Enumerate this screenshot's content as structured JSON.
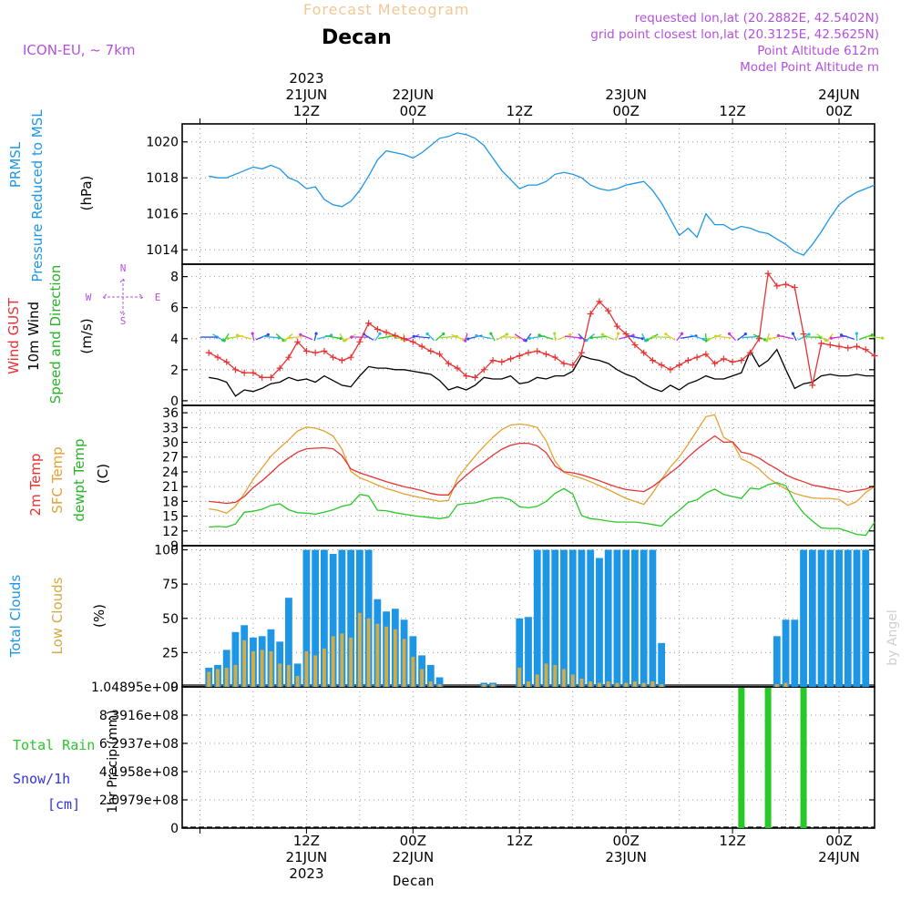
{
  "header": {
    "title_faded": "Forecast Meteogram",
    "location": "Decan",
    "model": "ICON-EU, ~ 7km",
    "requested": "requested lon,lat (20.2882E, 42.5402N)",
    "grid_point": "grid point closest lon,lat (20.3125E, 42.5625N)",
    "point_alt": "Point Altitude 612m",
    "model_alt": "Model Point Altitude m",
    "watermark": "by Angel",
    "footer_location": "Decan"
  },
  "colors": {
    "pressure": "#1e96e6",
    "gust": "#e63232",
    "wind": "#000000",
    "dir": "#28b428",
    "temp2m": "#e63232",
    "sfc": "#e6a032",
    "dew": "#28c828",
    "total_clouds": "#1e96e6",
    "low_clouds": "#d2aa46",
    "rain": "#28c828",
    "snow": "#3232e6",
    "compass": "#b450dc",
    "info": "#b450dc"
  },
  "time_axis": {
    "top_ticks": [
      {
        "hour": 24,
        "lines": [
          "2023",
          "21JUN",
          "12Z"
        ]
      },
      {
        "hour": 36,
        "lines": [
          "22JUN",
          "00Z"
        ]
      },
      {
        "hour": 48,
        "lines": [
          "12Z"
        ]
      },
      {
        "hour": 60,
        "lines": [
          "23JUN",
          "00Z"
        ]
      },
      {
        "hour": 72,
        "lines": [
          "12Z"
        ]
      },
      {
        "hour": 84,
        "lines": [
          "24JUN",
          "00Z"
        ]
      }
    ],
    "bottom_ticks": [
      {
        "hour": 24,
        "lines": [
          "12Z",
          "21JUN",
          "2023"
        ]
      },
      {
        "hour": 36,
        "lines": [
          "00Z",
          "22JUN"
        ]
      },
      {
        "hour": 48,
        "lines": [
          "12Z"
        ]
      },
      {
        "hour": 60,
        "lines": [
          "00Z",
          "23JUN"
        ]
      },
      {
        "hour": 72,
        "lines": [
          "12Z"
        ]
      },
      {
        "hour": 84,
        "lines": [
          "00Z",
          "24JUN"
        ]
      }
    ]
  },
  "chart_data": [
    {
      "type": "line",
      "panel": "pressure",
      "ylabel_lines": [
        "PRMSL",
        "Pressure Reduced to MSL"
      ],
      "unit": "(hPa)",
      "ylim": [
        1013.2,
        1021.0
      ],
      "yticks": [
        1014,
        1016,
        1018,
        1020
      ],
      "x_hours": [
        13,
        14,
        15,
        16,
        17,
        18,
        19,
        20,
        21,
        22,
        23,
        24,
        25,
        26,
        27,
        28,
        29,
        30,
        31,
        32,
        33,
        34,
        35,
        36,
        37,
        38,
        39,
        40,
        41,
        42,
        43,
        44,
        45,
        46,
        47,
        48,
        49,
        50,
        51,
        52,
        53,
        54,
        55,
        56,
        57,
        58,
        59,
        60,
        61,
        62,
        63,
        64,
        65,
        66,
        67,
        68,
        69,
        70,
        71,
        72,
        73,
        74,
        75,
        76,
        77,
        78,
        79,
        80,
        81,
        82,
        83,
        84,
        85,
        86,
        87,
        88
      ],
      "series": [
        {
          "name": "PRMSL",
          "values": [
            1018.1,
            1018.0,
            1018.0,
            1018.2,
            1018.4,
            1018.6,
            1018.5,
            1018.7,
            1018.5,
            1018.0,
            1017.8,
            1017.4,
            1017.5,
            1016.8,
            1016.5,
            1016.4,
            1016.7,
            1017.3,
            1018.1,
            1019.0,
            1019.5,
            1019.4,
            1019.3,
            1019.1,
            1019.4,
            1019.8,
            1020.2,
            1020.3,
            1020.5,
            1020.4,
            1020.2,
            1019.8,
            1019.1,
            1018.4,
            1017.9,
            1017.4,
            1017.6,
            1017.6,
            1017.8,
            1018.2,
            1018.3,
            1018.2,
            1018.0,
            1017.6,
            1017.4,
            1017.3,
            1017.4,
            1017.6,
            1017.7,
            1017.8,
            1017.3,
            1016.6,
            1015.7,
            1014.8,
            1015.2,
            1014.7,
            1016.0,
            1015.4,
            1015.4,
            1015.1,
            1015.3,
            1015.2,
            1015.0,
            1014.9,
            1014.6,
            1014.3,
            1013.9,
            1013.7,
            1014.3,
            1015.0,
            1015.8,
            1016.5,
            1016.9,
            1017.2,
            1017.4,
            1017.6
          ]
        }
      ]
    },
    {
      "type": "line",
      "panel": "wind",
      "ylabel_lines": [
        "Wind GUST",
        "10m Wind",
        "Speed and Direction"
      ],
      "unit": "(m/s)",
      "compass": {
        "n": "N",
        "s": "S",
        "w": "W",
        "e": "E"
      },
      "ylim": [
        -0.3,
        8.8
      ],
      "yticks": [
        0,
        2,
        4,
        6,
        8
      ],
      "x_hours": [
        13,
        14,
        15,
        16,
        17,
        18,
        19,
        20,
        21,
        22,
        23,
        24,
        25,
        26,
        27,
        28,
        29,
        30,
        31,
        32,
        33,
        34,
        35,
        36,
        37,
        38,
        39,
        40,
        41,
        42,
        43,
        44,
        45,
        46,
        47,
        48,
        49,
        50,
        51,
        52,
        53,
        54,
        55,
        56,
        57,
        58,
        59,
        60,
        61,
        62,
        63,
        64,
        65,
        66,
        67,
        68,
        69,
        70,
        71,
        72,
        73,
        74,
        75,
        76,
        77,
        78,
        79,
        80,
        81,
        82,
        83,
        84,
        85,
        86,
        87,
        88
      ],
      "series": [
        {
          "name": "Wind GUST",
          "values": [
            3.1,
            2.8,
            2.5,
            2.0,
            1.8,
            1.8,
            1.5,
            1.5,
            2.1,
            2.8,
            3.8,
            3.2,
            3.1,
            3.2,
            2.8,
            2.6,
            2.8,
            3.8,
            5.0,
            4.6,
            4.4,
            4.2,
            4.0,
            3.8,
            3.5,
            3.2,
            3.0,
            2.4,
            2.1,
            1.6,
            1.5,
            2.0,
            2.6,
            2.5,
            2.7,
            2.9,
            3.1,
            3.2,
            3.0,
            2.8,
            2.4,
            2.3,
            3.1,
            5.6,
            6.4,
            5.8,
            4.8,
            4.3,
            3.6,
            3.1,
            2.6,
            2.3,
            2.0,
            2.3,
            2.6,
            2.8,
            3.0,
            2.4,
            2.7,
            2.5,
            2.6,
            3.1,
            4.0,
            8.2,
            7.4,
            7.5,
            7.3,
            4.3,
            1.0,
            3.7,
            3.6,
            3.5,
            3.4,
            3.5,
            3.3,
            2.9
          ]
        },
        {
          "name": "10m Wind",
          "values": [
            1.5,
            1.4,
            1.2,
            0.3,
            0.7,
            0.6,
            0.8,
            1.1,
            1.2,
            1.5,
            1.3,
            1.4,
            1.2,
            1.6,
            1.3,
            1.0,
            0.9,
            1.6,
            2.2,
            2.1,
            2.1,
            2.0,
            2.0,
            1.9,
            1.8,
            1.7,
            1.3,
            0.7,
            0.9,
            0.7,
            1.0,
            1.5,
            1.4,
            1.4,
            1.6,
            1.1,
            1.2,
            1.5,
            1.4,
            1.6,
            1.6,
            1.9,
            2.9,
            2.7,
            2.6,
            2.4,
            2.0,
            1.7,
            1.5,
            1.1,
            0.8,
            0.6,
            1.0,
            0.7,
            1.1,
            1.3,
            1.6,
            1.4,
            1.4,
            1.6,
            1.8,
            3.2,
            2.2,
            2.6,
            3.3,
            2.0,
            0.8,
            1.1,
            1.2,
            1.6,
            1.7,
            1.6,
            1.6,
            1.7,
            1.6,
            1.6
          ]
        }
      ]
    },
    {
      "type": "line",
      "panel": "temperature",
      "ylabel_lines": [
        "2m Temp",
        "SFC Temp",
        "dewpt Temp"
      ],
      "unit": "(C)",
      "ylim": [
        9,
        37.5
      ],
      "yticks": [
        9,
        12,
        15,
        18,
        21,
        24,
        27,
        30,
        33,
        36
      ],
      "x_hours": [
        13,
        14,
        15,
        16,
        17,
        18,
        19,
        20,
        21,
        22,
        23,
        24,
        25,
        26,
        27,
        28,
        29,
        30,
        31,
        32,
        33,
        34,
        35,
        36,
        37,
        38,
        39,
        40,
        41,
        42,
        43,
        44,
        45,
        46,
        47,
        48,
        49,
        50,
        51,
        52,
        53,
        54,
        55,
        56,
        57,
        58,
        59,
        60,
        61,
        62,
        63,
        64,
        65,
        66,
        67,
        68,
        69,
        70,
        71,
        72,
        73,
        74,
        75,
        76,
        77,
        78,
        79,
        80,
        81,
        82,
        83,
        84,
        85,
        86,
        87,
        88
      ],
      "series": [
        {
          "name": "2m Temp",
          "values": [
            18.0,
            17.8,
            17.6,
            17.8,
            19.0,
            20.8,
            22.2,
            23.8,
            25.5,
            26.8,
            28.0,
            28.7,
            28.8,
            28.9,
            28.7,
            27.3,
            24.6,
            23.8,
            23.2,
            22.6,
            22.0,
            21.5,
            21.0,
            20.6,
            20.2,
            19.6,
            19.3,
            19.3,
            21.7,
            23.3,
            24.8,
            26.0,
            27.4,
            28.6,
            29.4,
            29.8,
            29.8,
            29.3,
            27.9,
            25.2,
            24.0,
            23.8,
            23.4,
            22.8,
            22.2,
            21.5,
            20.9,
            20.4,
            20.2,
            20.0,
            21.0,
            22.4,
            23.8,
            25.2,
            27.0,
            28.6,
            30.0,
            31.3,
            30.0,
            30.1,
            28.0,
            27.6,
            26.8,
            25.6,
            24.6,
            23.4,
            22.6,
            22.0,
            21.3,
            21.0,
            20.6,
            20.3,
            19.9,
            20.2,
            20.5,
            21.2
          ]
        },
        {
          "name": "SFC Temp",
          "values": [
            16.5,
            16.2,
            15.6,
            17.0,
            19.6,
            22.5,
            24.8,
            27.2,
            28.9,
            30.5,
            32.3,
            33.1,
            32.9,
            32.3,
            31.3,
            28.6,
            24.1,
            22.8,
            22.1,
            21.3,
            20.6,
            20.1,
            19.5,
            19.1,
            18.7,
            18.4,
            18.0,
            18.2,
            22.7,
            25.0,
            27.2,
            29.2,
            31.0,
            32.6,
            33.5,
            33.7,
            33.5,
            33.0,
            30.3,
            26.2,
            23.9,
            23.2,
            22.7,
            22.0,
            21.2,
            20.4,
            19.5,
            18.6,
            18.0,
            17.4,
            19.7,
            22.5,
            25.0,
            27.0,
            29.6,
            32.4,
            35.2,
            35.6,
            31.0,
            30.0,
            26.6,
            25.8,
            24.6,
            22.8,
            21.6,
            20.5,
            19.6,
            19.1,
            18.7,
            18.6,
            18.6,
            18.4,
            17.2,
            18.0,
            19.8,
            21.0
          ]
        },
        {
          "name": "dewpt Temp",
          "values": [
            12.8,
            12.9,
            12.8,
            13.4,
            15.8,
            16.0,
            16.4,
            17.2,
            17.5,
            16.3,
            15.7,
            15.6,
            15.4,
            15.8,
            16.3,
            17.0,
            17.4,
            19.4,
            19.1,
            16.2,
            16.1,
            15.7,
            15.4,
            15.1,
            14.9,
            14.7,
            14.5,
            14.8,
            17.3,
            17.6,
            17.7,
            18.2,
            18.7,
            18.8,
            18.3,
            16.9,
            16.7,
            17.0,
            18.0,
            19.6,
            20.6,
            19.5,
            15.1,
            14.5,
            14.3,
            14.0,
            13.8,
            13.8,
            13.8,
            13.6,
            13.3,
            13.0,
            14.8,
            16.2,
            17.8,
            18.3,
            19.7,
            20.5,
            19.4,
            19.0,
            18.6,
            20.7,
            20.5,
            21.4,
            21.8,
            21.2,
            18.0,
            15.6,
            14.0,
            12.6,
            12.5,
            12.5,
            11.9,
            11.3,
            11.1,
            13.8
          ]
        }
      ]
    },
    {
      "type": "bar",
      "panel": "clouds",
      "ylabel_lines": [
        "Total Clouds",
        "Low Clouds"
      ],
      "unit": "(%)",
      "ylim": [
        0,
        103
      ],
      "yticks": [
        0,
        25,
        50,
        75,
        100
      ],
      "x_hours": [
        13,
        14,
        15,
        16,
        17,
        18,
        19,
        20,
        21,
        22,
        23,
        24,
        25,
        26,
        27,
        28,
        29,
        30,
        31,
        32,
        33,
        34,
        35,
        36,
        37,
        38,
        39,
        40,
        41,
        42,
        43,
        44,
        45,
        46,
        47,
        48,
        49,
        50,
        51,
        52,
        53,
        54,
        55,
        56,
        57,
        58,
        59,
        60,
        61,
        62,
        63,
        64,
        65,
        66,
        67,
        68,
        69,
        70,
        71,
        72,
        73,
        74,
        75,
        76,
        77,
        78,
        79,
        80,
        81,
        82,
        83,
        84,
        85,
        86,
        87,
        88
      ],
      "series": [
        {
          "name": "Total Clouds",
          "values": [
            14,
            16,
            27,
            40,
            45,
            36,
            37,
            42,
            33,
            65,
            17,
            100,
            100,
            100,
            97,
            100,
            100,
            100,
            100,
            64,
            55,
            57,
            49,
            37,
            23,
            16,
            7,
            0,
            0,
            0,
            0,
            3,
            3,
            0,
            0,
            50,
            51,
            100,
            100,
            100,
            100,
            100,
            100,
            100,
            94,
            100,
            100,
            100,
            100,
            100,
            100,
            32,
            0,
            0,
            0,
            0,
            0,
            0,
            0,
            0,
            0,
            0,
            0,
            0,
            37,
            49,
            49,
            100,
            100,
            100,
            100,
            100,
            100,
            100,
            100,
            0
          ]
        },
        {
          "name": "Low Clouds",
          "values": [
            11,
            13,
            14,
            16,
            34,
            26,
            27,
            26,
            17,
            16,
            8,
            26,
            23,
            28,
            37,
            39,
            36,
            54,
            50,
            46,
            44,
            42,
            35,
            22,
            13,
            4,
            2,
            0,
            0,
            0,
            0,
            2,
            2,
            0,
            0,
            14,
            4,
            9,
            17,
            16,
            13,
            9,
            6,
            4,
            3,
            4,
            3,
            3,
            4,
            3,
            4,
            2,
            0,
            0,
            0,
            0,
            0,
            0,
            0,
            0,
            0,
            0,
            0,
            0,
            2,
            3,
            0,
            0,
            0,
            0,
            0,
            0,
            0,
            0,
            0,
            0
          ]
        }
      ]
    },
    {
      "type": "bar",
      "panel": "precip",
      "ylabel_lines": [
        "Total  Rain",
        "Snow/1h",
        "[cm]"
      ],
      "unit": "1hr Precip (mm)",
      "ylim": [
        0,
        1048950000.0
      ],
      "yticks": [
        0,
        209790000.0,
        419580000.0,
        629370000.0,
        839160000.0,
        1048950000.0
      ],
      "ytick_labels": [
        "0",
        "2.0979e+08",
        "4.1958e+08",
        "6.2937e+08",
        "8.3916e+08",
        "1.04895e+09"
      ],
      "x_hours": [
        73,
        76,
        80
      ],
      "series": [
        {
          "name": "Total Rain",
          "values": [
            1048950000.0,
            1048950000.0,
            1048950000.0
          ]
        }
      ]
    }
  ]
}
